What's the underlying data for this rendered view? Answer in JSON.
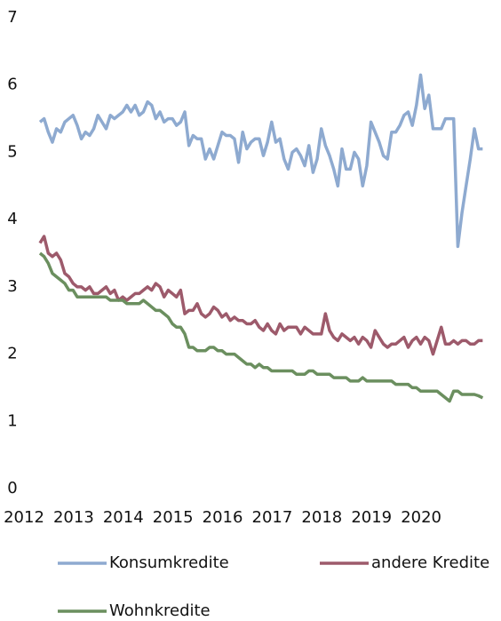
{
  "chart_data": {
    "type": "line",
    "x": [
      2012,
      2012.083,
      2012.167,
      2012.25,
      2012.333,
      2012.417,
      2012.5,
      2012.583,
      2012.667,
      2012.75,
      2012.833,
      2012.917,
      2013,
      2013.083,
      2013.167,
      2013.25,
      2013.333,
      2013.417,
      2013.5,
      2013.583,
      2013.667,
      2013.75,
      2013.833,
      2013.917,
      2014,
      2014.083,
      2014.167,
      2014.25,
      2014.333,
      2014.417,
      2014.5,
      2014.583,
      2014.667,
      2014.75,
      2014.833,
      2014.917,
      2015,
      2015.083,
      2015.167,
      2015.25,
      2015.333,
      2015.417,
      2015.5,
      2015.583,
      2015.667,
      2015.75,
      2015.833,
      2015.917,
      2016,
      2016.083,
      2016.167,
      2016.25,
      2016.333,
      2016.417,
      2016.5,
      2016.583,
      2016.667,
      2016.75,
      2016.833,
      2016.917,
      2017,
      2017.083,
      2017.167,
      2017.25,
      2017.333,
      2017.417,
      2017.5,
      2017.583,
      2017.667,
      2017.75,
      2017.833,
      2017.917,
      2018,
      2018.083,
      2018.167,
      2018.25,
      2018.333,
      2018.417,
      2018.5,
      2018.583,
      2018.667,
      2018.75,
      2018.833,
      2018.917,
      2019,
      2019.083,
      2019.167,
      2019.25,
      2019.333,
      2019.417,
      2019.5,
      2019.583,
      2019.667,
      2019.75,
      2019.833,
      2019.917,
      2020,
      2020.083,
      2020.167,
      2020.25,
      2020.333,
      2020.417,
      2020.5,
      2020.583,
      2020.667,
      2020.75,
      2020.833,
      2020.917
    ],
    "series": [
      {
        "name": "Konsumkredite",
        "color": "#8eaad0",
        "values": [
          5.45,
          5.5,
          5.3,
          5.15,
          5.35,
          5.3,
          5.45,
          5.5,
          5.55,
          5.4,
          5.2,
          5.3,
          5.25,
          5.35,
          5.55,
          5.45,
          5.35,
          5.55,
          5.5,
          5.55,
          5.6,
          5.7,
          5.6,
          5.7,
          5.55,
          5.6,
          5.75,
          5.7,
          5.5,
          5.6,
          5.45,
          5.5,
          5.5,
          5.4,
          5.45,
          5.6,
          5.1,
          5.25,
          5.2,
          5.2,
          4.9,
          5.05,
          4.9,
          5.1,
          5.3,
          5.25,
          5.25,
          5.2,
          4.85,
          5.3,
          5.05,
          5.15,
          5.2,
          5.2,
          4.95,
          5.15,
          5.45,
          5.15,
          5.2,
          4.9,
          4.75,
          5.0,
          5.05,
          4.95,
          4.8,
          5.1,
          4.7,
          4.9,
          5.35,
          5.1,
          4.95,
          4.75,
          4.5,
          5.05,
          4.75,
          4.75,
          5.0,
          4.9,
          4.5,
          4.8,
          5.45,
          5.3,
          5.15,
          4.95,
          4.9,
          5.3,
          5.3,
          5.4,
          5.55,
          5.6,
          5.4,
          5.7,
          6.15,
          5.65,
          5.85,
          5.35,
          5.35,
          5.35,
          5.5,
          5.5,
          5.5,
          3.6,
          4.1,
          4.5,
          4.9,
          5.35,
          5.05,
          5.05
        ]
      },
      {
        "name": "andere Kredite",
        "color": "#9d5a6b",
        "values": [
          3.65,
          3.75,
          3.5,
          3.45,
          3.5,
          3.4,
          3.2,
          3.15,
          3.05,
          3.0,
          3.0,
          2.95,
          3.0,
          2.9,
          2.9,
          2.95,
          3.0,
          2.9,
          2.95,
          2.8,
          2.85,
          2.8,
          2.85,
          2.9,
          2.9,
          2.95,
          3.0,
          2.95,
          3.05,
          3.0,
          2.85,
          2.95,
          2.9,
          2.85,
          2.95,
          2.6,
          2.65,
          2.65,
          2.75,
          2.6,
          2.55,
          2.6,
          2.7,
          2.65,
          2.55,
          2.6,
          2.5,
          2.55,
          2.5,
          2.5,
          2.45,
          2.45,
          2.5,
          2.4,
          2.35,
          2.45,
          2.35,
          2.3,
          2.45,
          2.35,
          2.4,
          2.4,
          2.4,
          2.3,
          2.4,
          2.35,
          2.3,
          2.3,
          2.3,
          2.6,
          2.35,
          2.25,
          2.2,
          2.3,
          2.25,
          2.2,
          2.25,
          2.15,
          2.25,
          2.2,
          2.1,
          2.35,
          2.25,
          2.15,
          2.1,
          2.15,
          2.15,
          2.2,
          2.25,
          2.1,
          2.2,
          2.25,
          2.15,
          2.25,
          2.2,
          2.0,
          2.2,
          2.4,
          2.15,
          2.15,
          2.2,
          2.15,
          2.2,
          2.2,
          2.15,
          2.15,
          2.2,
          2.2
        ]
      },
      {
        "name": "Wohnkredite",
        "color": "#6b8f5f",
        "values": [
          3.5,
          3.45,
          3.35,
          3.2,
          3.15,
          3.1,
          3.05,
          2.95,
          2.95,
          2.85,
          2.85,
          2.85,
          2.85,
          2.85,
          2.85,
          2.85,
          2.85,
          2.8,
          2.8,
          2.8,
          2.8,
          2.75,
          2.75,
          2.75,
          2.75,
          2.8,
          2.75,
          2.7,
          2.65,
          2.65,
          2.6,
          2.55,
          2.45,
          2.4,
          2.4,
          2.3,
          2.1,
          2.1,
          2.05,
          2.05,
          2.05,
          2.1,
          2.1,
          2.05,
          2.05,
          2.0,
          2.0,
          2.0,
          1.95,
          1.9,
          1.85,
          1.85,
          1.8,
          1.85,
          1.8,
          1.8,
          1.75,
          1.75,
          1.75,
          1.75,
          1.75,
          1.75,
          1.7,
          1.7,
          1.7,
          1.75,
          1.75,
          1.7,
          1.7,
          1.7,
          1.7,
          1.65,
          1.65,
          1.65,
          1.65,
          1.6,
          1.6,
          1.6,
          1.65,
          1.6,
          1.6,
          1.6,
          1.6,
          1.6,
          1.6,
          1.6,
          1.55,
          1.55,
          1.55,
          1.55,
          1.5,
          1.5,
          1.45,
          1.45,
          1.45,
          1.45,
          1.45,
          1.4,
          1.35,
          1.3,
          1.45,
          1.45,
          1.4,
          1.4,
          1.4,
          1.4,
          1.38,
          1.35
        ]
      }
    ],
    "xlim": [
      2012,
      2021
    ],
    "xticks": [
      2012,
      2013,
      2014,
      2015,
      2016,
      2017,
      2018,
      2019,
      2020
    ],
    "ylim": [
      0,
      7
    ],
    "yticks": [
      0,
      1,
      2,
      3,
      4,
      5,
      6,
      7
    ]
  }
}
